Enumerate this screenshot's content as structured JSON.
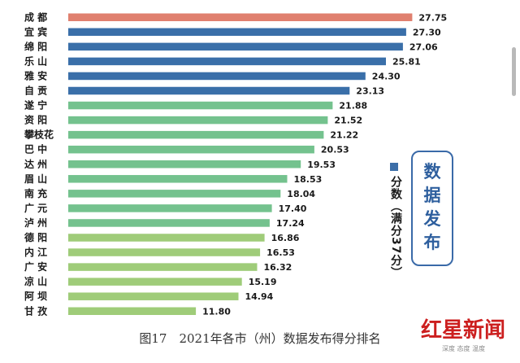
{
  "chart_data": {
    "type": "bar",
    "orientation": "horizontal",
    "title": "",
    "xlabel": "",
    "ylabel": "",
    "xlim": [
      0,
      30
    ],
    "grid": false,
    "legend": "分数（满分37分）",
    "categories": [
      "成 都",
      "宜 宾",
      "绵 阳",
      "乐 山",
      "雅 安",
      "自 贡",
      "遂 宁",
      "资 阳",
      "攀枝花",
      "巴 中",
      "达 州",
      "眉 山",
      "南 充",
      "广 元",
      "泸 州",
      "德 阳",
      "内 江",
      "广 安",
      "凉 山",
      "阿 坝",
      "甘 孜"
    ],
    "values": [
      27.75,
      27.3,
      27.06,
      25.81,
      24.3,
      23.13,
      21.88,
      21.52,
      21.22,
      20.53,
      19.53,
      18.53,
      18.04,
      17.4,
      17.24,
      16.86,
      16.53,
      16.32,
      15.19,
      14.94,
      11.8
    ],
    "value_labels": [
      "27.75",
      "27.30",
      "27.06",
      "25.81",
      "24.30",
      "23.13",
      "21.88",
      "21.52",
      "21.22",
      "20.53",
      "19.53",
      "18.53",
      "18.04",
      "17.40",
      "17.24",
      "16.86",
      "16.53",
      "16.32",
      "15.19",
      "14.94",
      "11.80"
    ],
    "bar_groups": [
      "top",
      "blue",
      "blue",
      "blue",
      "blue",
      "blue",
      "teal",
      "teal",
      "teal",
      "teal",
      "teal",
      "teal",
      "teal",
      "teal",
      "teal",
      "lime",
      "lime",
      "lime",
      "lime",
      "lime",
      "lime"
    ],
    "colors": {
      "top": "#e0806f",
      "blue": "#3a6fa9",
      "teal": "#74c28e",
      "lime": "#9fcc79",
      "top_value_text": "#e0806f"
    }
  },
  "badge": {
    "text": "数据发布",
    "border_color": "#3a6aa8",
    "text_color": "#2e5f9e"
  },
  "legend": {
    "swatch_color": "#3c6ea8",
    "text": "分数（满分37分）"
  },
  "caption": "图17　2021年各市（州）数据发布得分排名",
  "watermark": {
    "main": "红星新闻",
    "sub": "深度 态度 温度"
  }
}
